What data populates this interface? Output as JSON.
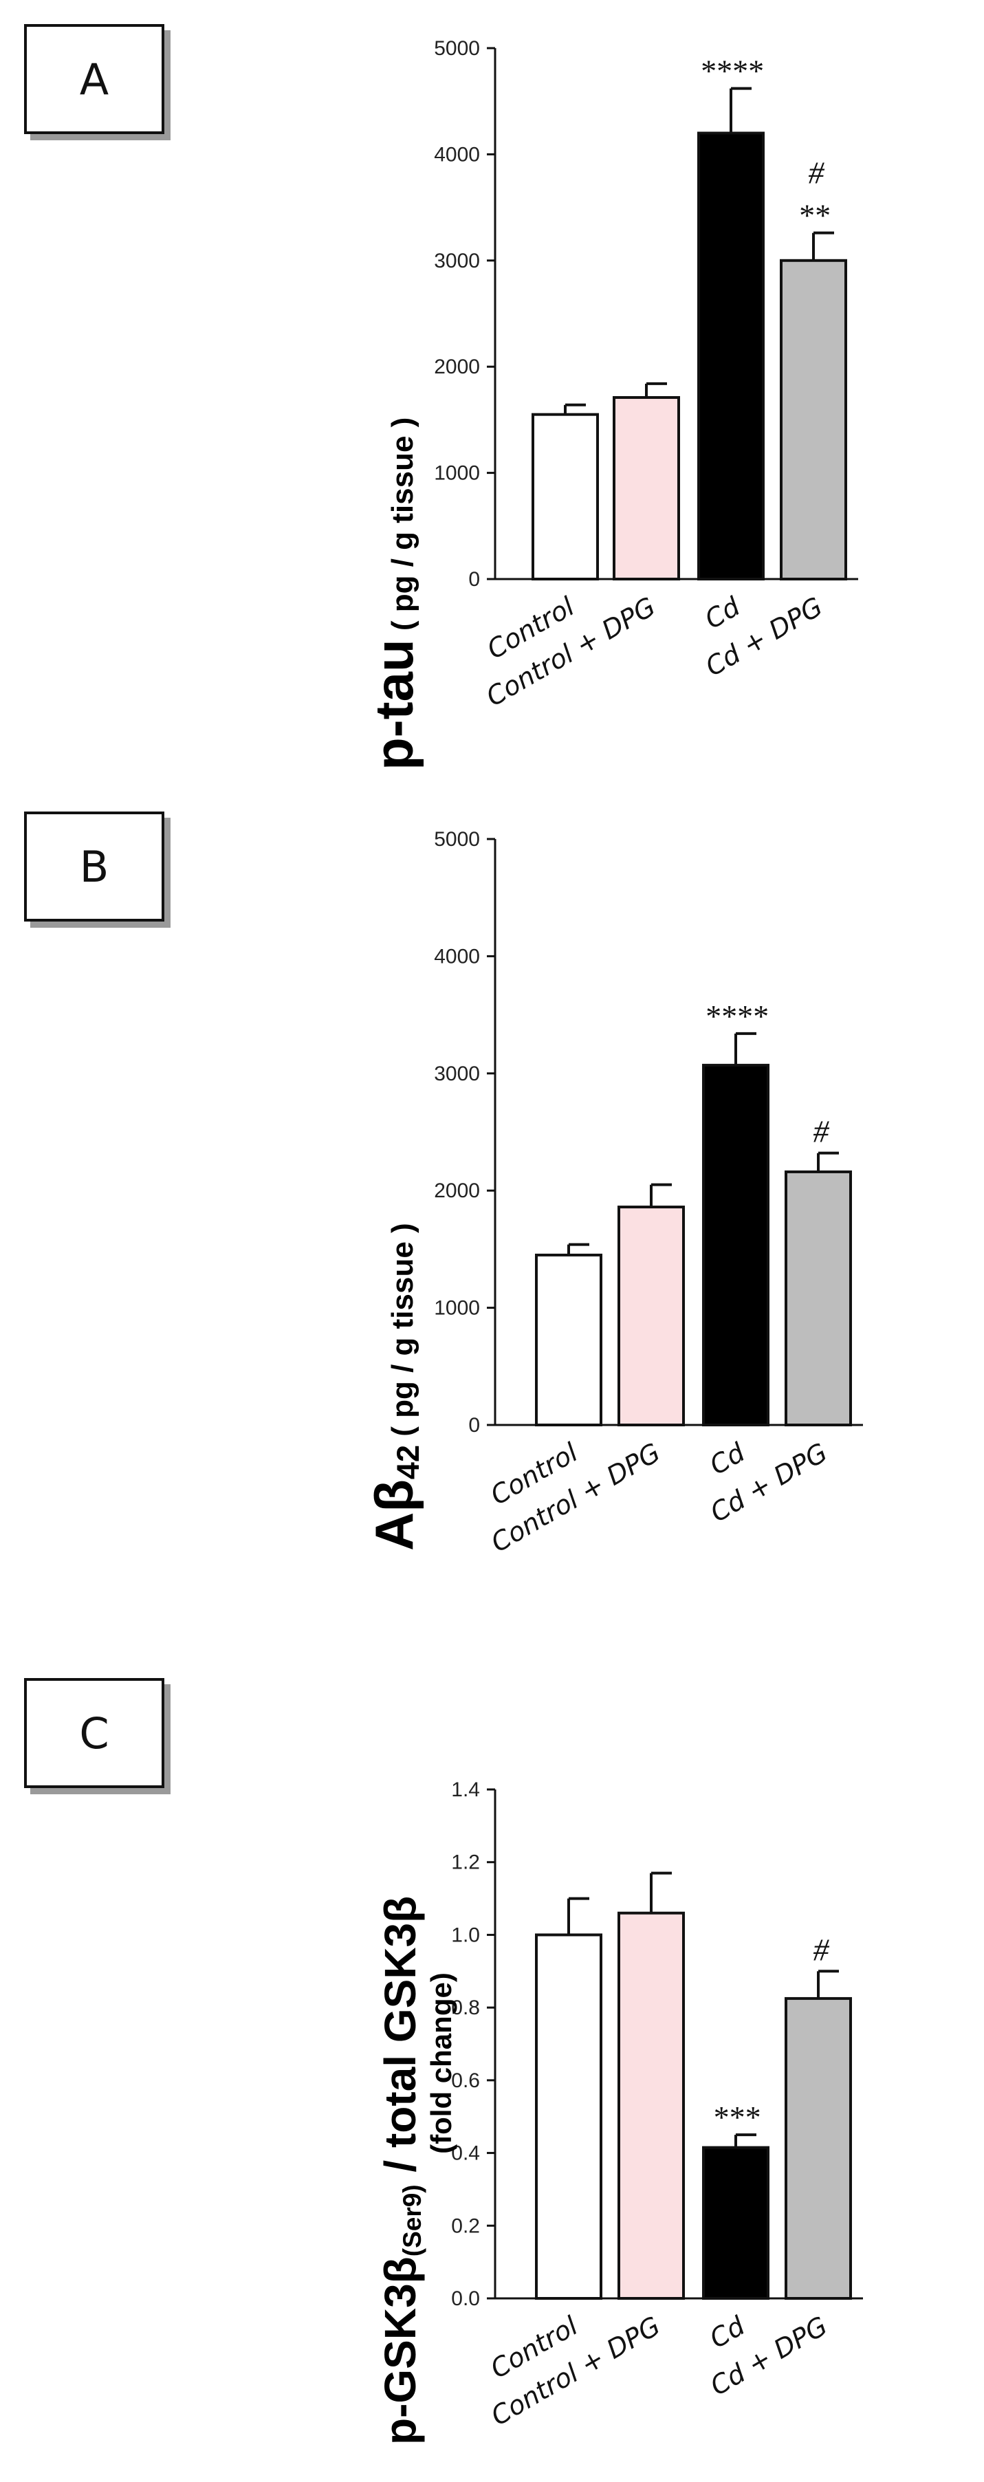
{
  "panels": [
    {
      "letter": "A"
    },
    {
      "letter": "B"
    },
    {
      "letter": "C"
    }
  ],
  "colors": {
    "control": "#ffffff",
    "control_dpg": "#fbe0e2",
    "cd": "#000000",
    "cd_dpg": "#bdbdbd",
    "stroke": "#111111"
  },
  "chart_data": [
    {
      "type": "bar",
      "panel": "A",
      "categories": [
        "Control",
        "Control + DPG",
        "Cd",
        "Cd + DPG"
      ],
      "values": [
        1550,
        1710,
        4200,
        3000
      ],
      "errors": [
        90,
        130,
        420,
        260
      ],
      "significance": [
        "",
        "",
        "****",
        "**"
      ],
      "significance_vs_cd": [
        "",
        "",
        "",
        "#"
      ],
      "ylabel_main": "p-tau",
      "ylabel_unit": "( pg / g tissue )",
      "ylim": [
        0,
        5000
      ],
      "yticks": [
        "0",
        "1000",
        "2000",
        "3000",
        "4000",
        "5000"
      ]
    },
    {
      "type": "bar",
      "panel": "B",
      "categories": [
        "Control",
        "Control + DPG",
        "Cd",
        "Cd + DPG"
      ],
      "values": [
        1450,
        1860,
        3070,
        2160
      ],
      "errors": [
        90,
        190,
        270,
        160
      ],
      "significance": [
        "",
        "",
        "****",
        ""
      ],
      "significance_vs_cd": [
        "",
        "",
        "",
        "#"
      ],
      "ylabel_main": "Aβ",
      "ylabel_sub": "42",
      "ylabel_unit": "( pg / g tissue )",
      "ylim": [
        0,
        5000
      ],
      "yticks": [
        "0",
        "1000",
        "2000",
        "3000",
        "4000",
        "5000"
      ]
    },
    {
      "type": "bar",
      "panel": "C",
      "categories": [
        "Control",
        "Control + DPG",
        "Cd",
        "Cd + DPG"
      ],
      "values": [
        1.0,
        1.06,
        0.415,
        0.825
      ],
      "errors": [
        0.1,
        0.11,
        0.035,
        0.075
      ],
      "significance": [
        "",
        "",
        "***",
        ""
      ],
      "significance_vs_cd": [
        "",
        "",
        "",
        "#"
      ],
      "ylabel_main": "p-GSK3β",
      "ylabel_sub": "(Ser9)",
      "ylabel_rest": " / total GSK3β",
      "ylabel_unit": "(fold change)",
      "ylim": [
        0,
        1.4
      ],
      "yticks": [
        "0.0",
        "0.2",
        "0.4",
        "0.6",
        "0.8",
        "1.0",
        "1.2",
        "1.4"
      ]
    }
  ]
}
